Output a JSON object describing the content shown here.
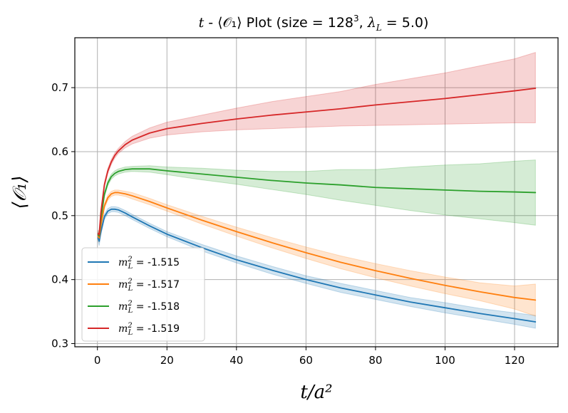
{
  "chart_data": {
    "type": "line",
    "title": {
      "var": "t",
      "sep": " - ",
      "obs": "⟨𝒪₁⟩",
      "mid": " Plot (size",
      "eq": " = ",
      "size": "128",
      "size_exp": "3",
      "comma": ", ",
      "lam": "λ",
      "lam_sub": "L",
      "lam_val": "5.0",
      "close": ")"
    },
    "xlabel": "t/a²",
    "ylabel": "⟨𝒪₁⟩",
    "xlim": [
      -6.5,
      132.5
    ],
    "ylim": [
      0.295,
      0.778
    ],
    "xticks": [
      0,
      20,
      40,
      60,
      80,
      100,
      120
    ],
    "yticks": [
      0.3,
      0.4,
      0.5,
      0.6,
      0.7
    ],
    "ytick_labels": [
      "0.3",
      "0.4",
      "0.5",
      "0.6",
      "0.7"
    ],
    "grid": true,
    "legend_position": "lower-left",
    "series": [
      {
        "name": "m_L^2=-1.515",
        "label_prefix": "m",
        "label_sup": "2",
        "label_sub": "L",
        "label_eq": " = ",
        "label_value": "-1.515",
        "color": "#1f77b4",
        "x": [
          0.2,
          0.5,
          1,
          2,
          3,
          4,
          5,
          6,
          8,
          10,
          15,
          20,
          30,
          40,
          50,
          60,
          70,
          80,
          90,
          100,
          110,
          120,
          126
        ],
        "y": [
          0.465,
          0.46,
          0.475,
          0.498,
          0.507,
          0.51,
          0.51,
          0.509,
          0.504,
          0.498,
          0.484,
          0.471,
          0.45,
          0.431,
          0.415,
          0.4,
          0.387,
          0.376,
          0.365,
          0.356,
          0.347,
          0.339,
          0.334
        ],
        "lower": [
          0.46,
          0.453,
          0.47,
          0.494,
          0.503,
          0.506,
          0.506,
          0.505,
          0.5,
          0.494,
          0.48,
          0.467,
          0.445,
          0.426,
          0.409,
          0.394,
          0.38,
          0.369,
          0.358,
          0.348,
          0.339,
          0.33,
          0.324
        ],
        "upper": [
          0.47,
          0.467,
          0.48,
          0.502,
          0.511,
          0.514,
          0.514,
          0.513,
          0.508,
          0.502,
          0.488,
          0.475,
          0.455,
          0.437,
          0.421,
          0.406,
          0.394,
          0.383,
          0.372,
          0.364,
          0.355,
          0.348,
          0.344
        ]
      },
      {
        "name": "m_L^2=-1.517",
        "label_prefix": "m",
        "label_sup": "2",
        "label_sub": "L",
        "label_eq": " = ",
        "label_value": "-1.517",
        "color": "#ff7f0e",
        "x": [
          0.2,
          0.5,
          1,
          2,
          3,
          4,
          5,
          6,
          8,
          10,
          15,
          20,
          30,
          40,
          50,
          60,
          70,
          80,
          90,
          100,
          110,
          120,
          126
        ],
        "y": [
          0.468,
          0.465,
          0.485,
          0.515,
          0.528,
          0.534,
          0.536,
          0.536,
          0.534,
          0.531,
          0.522,
          0.512,
          0.493,
          0.475,
          0.458,
          0.442,
          0.427,
          0.414,
          0.402,
          0.391,
          0.381,
          0.372,
          0.368
        ],
        "lower": [
          0.463,
          0.458,
          0.48,
          0.511,
          0.524,
          0.53,
          0.532,
          0.532,
          0.53,
          0.526,
          0.517,
          0.507,
          0.487,
          0.468,
          0.45,
          0.433,
          0.417,
          0.403,
          0.39,
          0.378,
          0.367,
          0.354,
          0.343
        ],
        "upper": [
          0.473,
          0.472,
          0.49,
          0.519,
          0.532,
          0.538,
          0.54,
          0.54,
          0.538,
          0.536,
          0.527,
          0.517,
          0.499,
          0.482,
          0.466,
          0.451,
          0.437,
          0.425,
          0.414,
          0.404,
          0.395,
          0.39,
          0.393
        ]
      },
      {
        "name": "m_L^2=-1.518",
        "label_prefix": "m",
        "label_sup": "2",
        "label_sub": "L",
        "label_eq": " = ",
        "label_value": "-1.518",
        "color": "#2ca02c",
        "x": [
          0.2,
          0.5,
          1,
          2,
          3,
          4,
          5,
          6,
          8,
          10,
          15,
          20,
          30,
          40,
          50,
          60,
          70,
          80,
          90,
          100,
          110,
          120,
          126
        ],
        "y": [
          0.47,
          0.468,
          0.495,
          0.533,
          0.551,
          0.561,
          0.566,
          0.569,
          0.572,
          0.573,
          0.573,
          0.57,
          0.565,
          0.56,
          0.555,
          0.551,
          0.548,
          0.544,
          0.542,
          0.54,
          0.538,
          0.537,
          0.536
        ],
        "lower": [
          0.465,
          0.461,
          0.49,
          0.529,
          0.547,
          0.557,
          0.562,
          0.565,
          0.568,
          0.569,
          0.568,
          0.564,
          0.556,
          0.549,
          0.541,
          0.533,
          0.524,
          0.516,
          0.508,
          0.501,
          0.495,
          0.489,
          0.485
        ],
        "upper": [
          0.475,
          0.475,
          0.5,
          0.537,
          0.555,
          0.565,
          0.57,
          0.573,
          0.576,
          0.577,
          0.578,
          0.576,
          0.574,
          0.571,
          0.569,
          0.569,
          0.572,
          0.572,
          0.576,
          0.579,
          0.581,
          0.585,
          0.587
        ]
      },
      {
        "name": "m_L^2=-1.519",
        "label_prefix": "m",
        "label_sup": "2",
        "label_sub": "L",
        "label_eq": " = ",
        "label_value": "-1.519",
        "color": "#d62728",
        "x": [
          0.2,
          0.5,
          1,
          2,
          3,
          4,
          5,
          6,
          8,
          10,
          15,
          20,
          30,
          40,
          50,
          60,
          70,
          80,
          90,
          100,
          110,
          120,
          126
        ],
        "y": [
          0.472,
          0.47,
          0.505,
          0.548,
          0.57,
          0.584,
          0.594,
          0.601,
          0.611,
          0.618,
          0.629,
          0.636,
          0.644,
          0.651,
          0.657,
          0.662,
          0.667,
          0.673,
          0.678,
          0.683,
          0.689,
          0.695,
          0.699
        ],
        "lower": [
          0.467,
          0.463,
          0.5,
          0.544,
          0.566,
          0.58,
          0.59,
          0.597,
          0.606,
          0.612,
          0.621,
          0.626,
          0.631,
          0.634,
          0.636,
          0.638,
          0.64,
          0.641,
          0.642,
          0.643,
          0.644,
          0.645,
          0.645
        ],
        "upper": [
          0.477,
          0.477,
          0.51,
          0.552,
          0.574,
          0.588,
          0.598,
          0.605,
          0.616,
          0.624,
          0.637,
          0.646,
          0.657,
          0.668,
          0.678,
          0.686,
          0.694,
          0.705,
          0.714,
          0.723,
          0.734,
          0.745,
          0.755
        ]
      }
    ]
  }
}
